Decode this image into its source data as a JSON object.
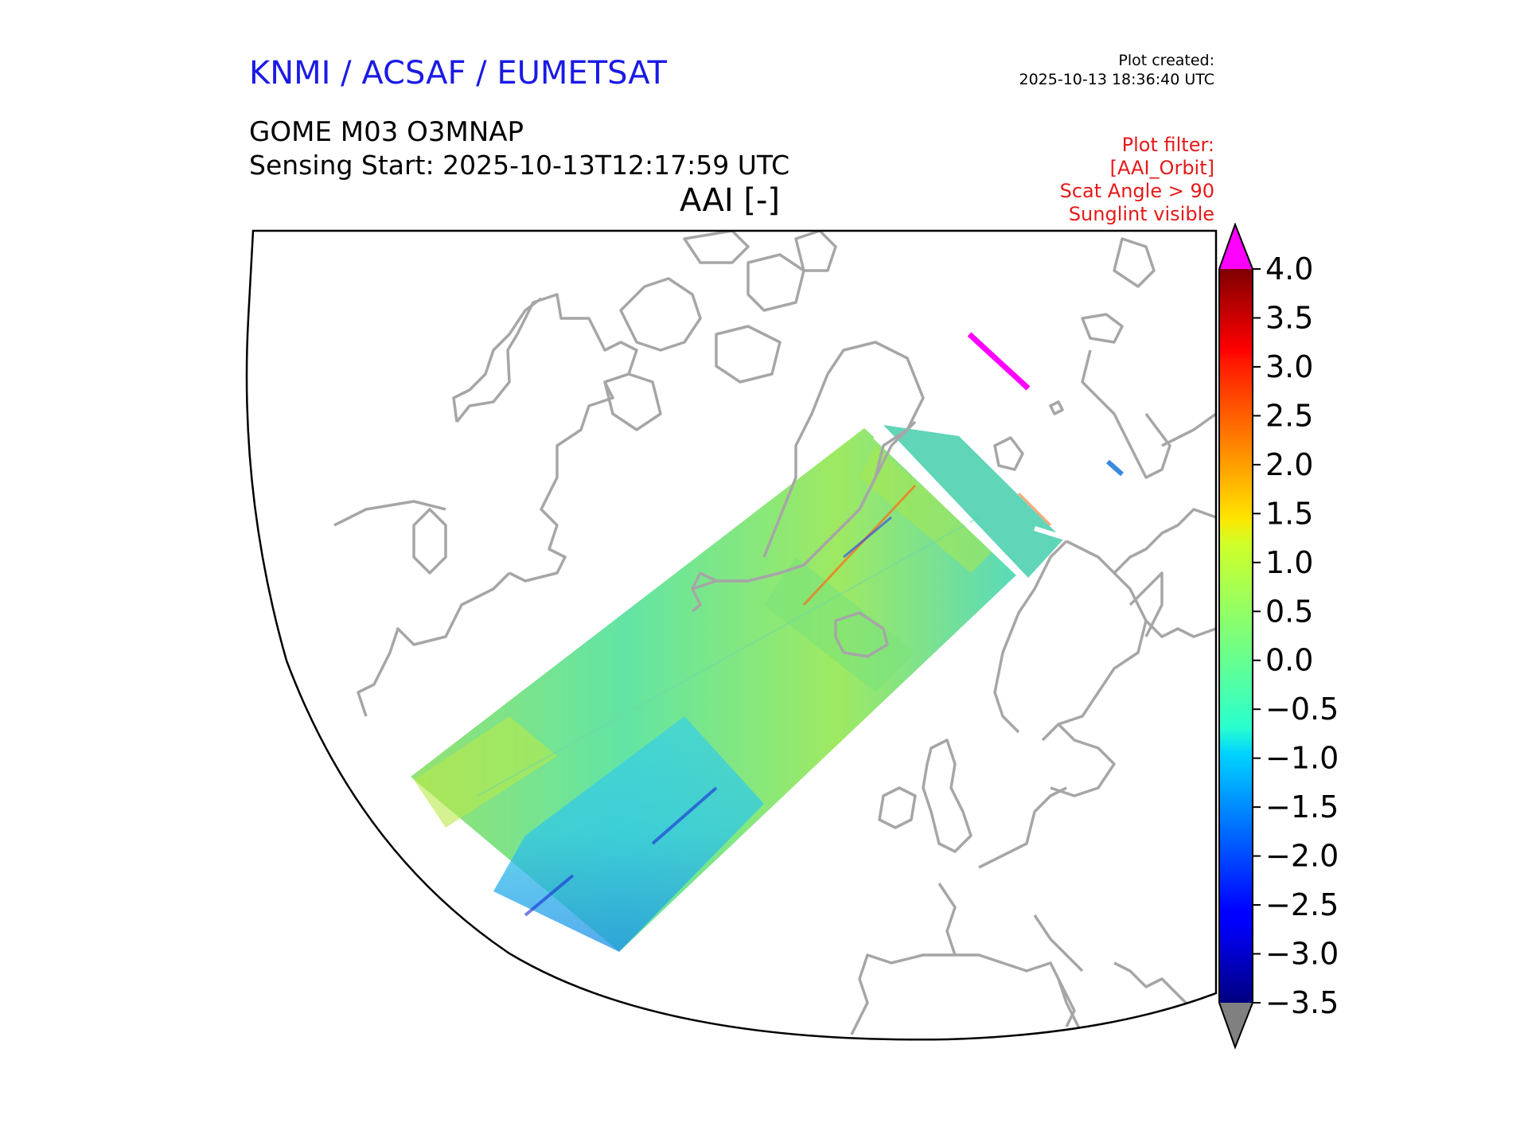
{
  "header": {
    "organisations": "KNMI / ACSAF / EUMETSAT",
    "plot_created_label": "Plot created:",
    "plot_created_time": "2025-10-13 18:36:40 UTC",
    "product": "GOME M03 O3MNAP",
    "sensing_start": "Sensing Start: 2025-10-13T12:17:59 UTC",
    "variable": "AAI [-]"
  },
  "filter": {
    "lines": [
      "Plot filter:",
      "[AAI_Orbit]",
      "Scat Angle > 90",
      "Sunglint visible"
    ]
  },
  "colorbar": {
    "min": -3.5,
    "max": 4.0,
    "ticks": [
      "4.0",
      "3.5",
      "3.0",
      "2.5",
      "2.0",
      "1.5",
      "1.0",
      "0.5",
      "0.0",
      "−0.5",
      "−1.0",
      "−1.5",
      "−2.0",
      "−2.5",
      "−3.0",
      "−3.5"
    ],
    "over_color": "#ff00ff",
    "under_color": "#808080",
    "colormap": "jet"
  },
  "colors": {
    "coastline": "#a6a6a6",
    "border": "#000000"
  }
}
